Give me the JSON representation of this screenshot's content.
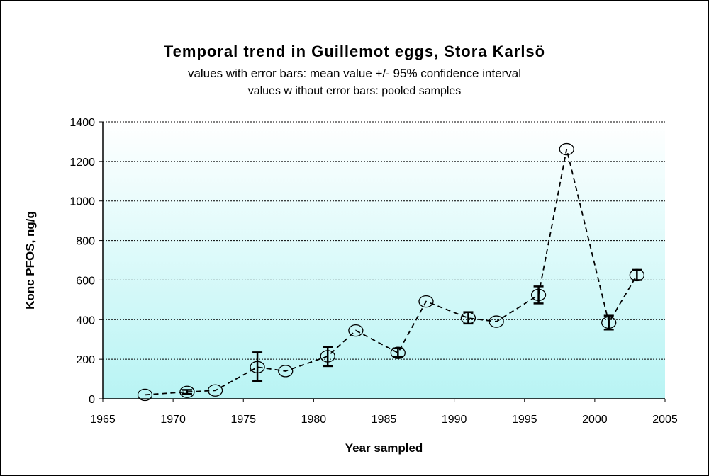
{
  "chart_data": {
    "type": "scatter",
    "title": "Temporal trend in Guillemot eggs, Stora Karlsö",
    "subtitle_1": "values with error bars: mean value +/- 95% confidence interval",
    "subtitle_2": "values w ithout error bars: pooled samples",
    "xlabel": "Year sampled",
    "ylabel": "Konc PFOS, ng/g",
    "xlim": [
      1965,
      2005
    ],
    "ylim": [
      0,
      1400
    ],
    "xticks": [
      1965,
      1970,
      1975,
      1980,
      1985,
      1990,
      1995,
      2000,
      2005
    ],
    "yticks": [
      0,
      200,
      400,
      600,
      800,
      1000,
      1200,
      1400
    ],
    "grid": "horizontal dotted",
    "connector": "dashed line",
    "background_gradient": [
      "#ffffff",
      "#b8f4f4"
    ],
    "marker_color": "#000000",
    "points": [
      {
        "x": 1968,
        "y": 20
      },
      {
        "x": 1971,
        "y": 35,
        "err_low": 25,
        "err_high": 45
      },
      {
        "x": 1973,
        "y": 42
      },
      {
        "x": 1976,
        "y": 160,
        "err_low": 90,
        "err_high": 235
      },
      {
        "x": 1978,
        "y": 140
      },
      {
        "x": 1981,
        "y": 215,
        "err_low": 165,
        "err_high": 262
      },
      {
        "x": 1983,
        "y": 345
      },
      {
        "x": 1986,
        "y": 232,
        "err_low": 212,
        "err_high": 255
      },
      {
        "x": 1988,
        "y": 492
      },
      {
        "x": 1991,
        "y": 408,
        "err_low": 380,
        "err_high": 438
      },
      {
        "x": 1993,
        "y": 390
      },
      {
        "x": 1996,
        "y": 525,
        "err_low": 482,
        "err_high": 568
      },
      {
        "x": 1998,
        "y": 1262
      },
      {
        "x": 2001,
        "y": 385,
        "err_low": 350,
        "err_high": 420
      },
      {
        "x": 2003,
        "y": 625,
        "err_low": 600,
        "err_high": 652
      }
    ]
  }
}
